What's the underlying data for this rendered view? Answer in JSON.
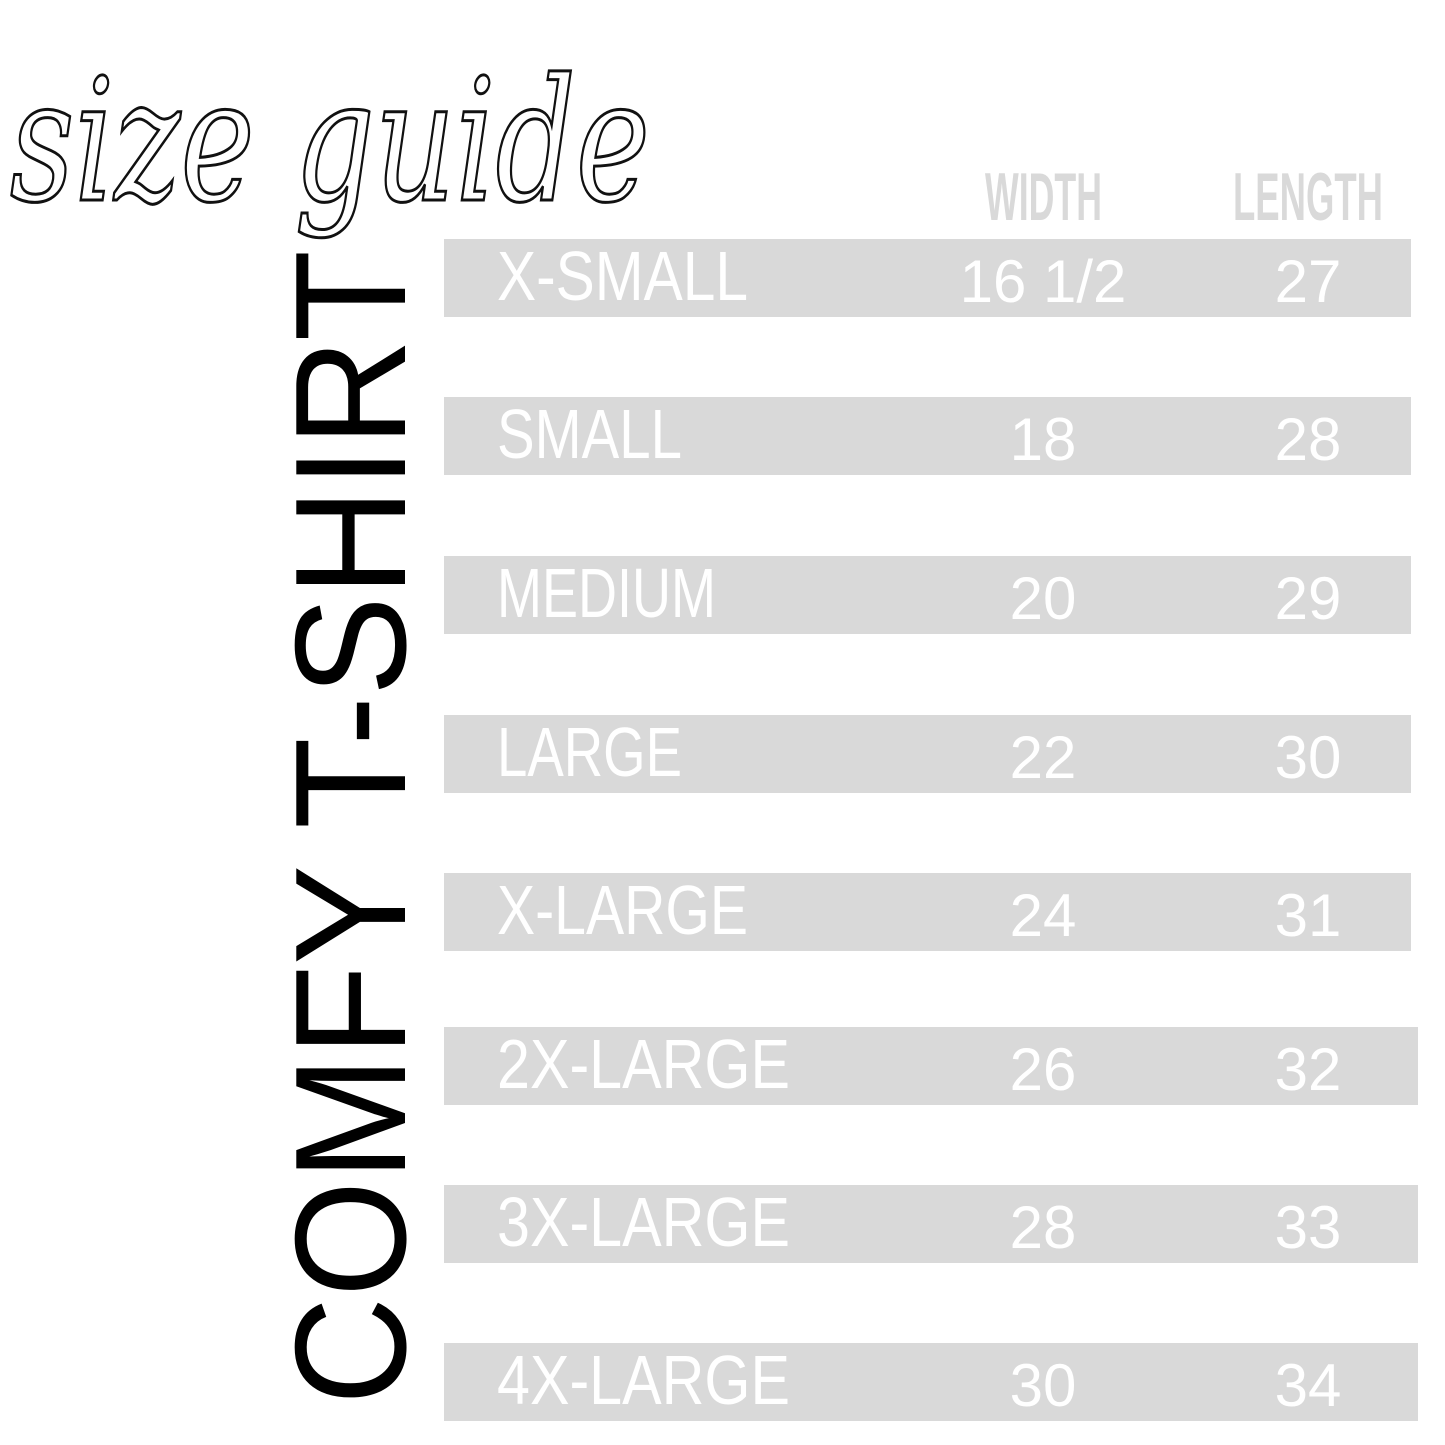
{
  "title": "size guide",
  "garment": "COMFY T-SHIRT",
  "columns": {
    "width": "WIDTH",
    "length": "LENGTH"
  },
  "rows": [
    {
      "size": "X-SMALL",
      "width": "16 1/2",
      "length": "27"
    },
    {
      "size": "SMALL",
      "width": "18",
      "length": "28"
    },
    {
      "size": "MEDIUM",
      "width": "20",
      "length": "29"
    },
    {
      "size": "LARGE",
      "width": "22",
      "length": "30"
    },
    {
      "size": "X-LARGE",
      "width": "24",
      "length": "31"
    },
    {
      "size": "2X-LARGE",
      "width": "26",
      "length": "32"
    },
    {
      "size": "3X-LARGE",
      "width": "28",
      "length": "33"
    },
    {
      "size": "4X-LARGE",
      "width": "30",
      "length": "34"
    }
  ],
  "colors": {
    "bar": "#d9d9d9",
    "text_on_bar": "#ffffff",
    "vertical_title": "#000000"
  }
}
